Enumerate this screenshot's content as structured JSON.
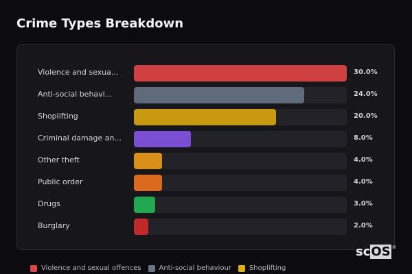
{
  "page": {
    "title": "Crime Types Breakdown"
  },
  "chart_data": {
    "type": "bar",
    "orientation": "horizontal",
    "title": "Crime Types Breakdown",
    "xlabel": "",
    "ylabel": "",
    "scale_max": 30.0,
    "categories": [
      "Violence and sexual offences",
      "Anti-social behaviour",
      "Shoplifting",
      "Criminal damage and arson",
      "Other theft",
      "Public order",
      "Drugs",
      "Burglary"
    ],
    "display_labels": [
      "Violence and sexua...",
      "Anti-social behavi...",
      "Shoplifting",
      "Criminal damage an...",
      "Other theft",
      "Public order",
      "Drugs",
      "Burglary"
    ],
    "values": [
      30.0,
      24.0,
      20.0,
      8.0,
      4.0,
      4.0,
      3.0,
      2.0
    ],
    "value_labels": [
      "30.0%",
      "24.0%",
      "20.0%",
      "8.0%",
      "4.0%",
      "4.0%",
      "3.0%",
      "2.0%"
    ],
    "colors": [
      "#d04040",
      "#5f6b7a",
      "#c9990f",
      "#7b4fd4",
      "#d9901a",
      "#dc6a1e",
      "#22a851",
      "#c0282a"
    ],
    "legend": [
      {
        "label": "Violence and sexual offences",
        "color": "#e0444a"
      },
      {
        "label": "Anti-social behaviour",
        "color": "#6b7587"
      },
      {
        "label": "Shoplifting",
        "color": "#e0b010"
      }
    ],
    "grid": false,
    "legend_position": "bottom"
  },
  "rows": [
    {
      "label": "Violence and sexua...",
      "pct": "30.0%"
    },
    {
      "label": "Anti-social behavi...",
      "pct": "24.0%"
    },
    {
      "label": "Shoplifting",
      "pct": "20.0%"
    },
    {
      "label": "Criminal damage an...",
      "pct": "8.0%"
    },
    {
      "label": "Other theft",
      "pct": "4.0%"
    },
    {
      "label": "Public order",
      "pct": "4.0%"
    },
    {
      "label": "Drugs",
      "pct": "3.0%"
    },
    {
      "label": "Burglary",
      "pct": "2.0%"
    }
  ],
  "legend": [
    {
      "label": "Violence and sexual offences"
    },
    {
      "label": "Anti-social behaviour"
    },
    {
      "label": "Shoplifting"
    }
  ],
  "logo": {
    "left": "sc",
    "right": "OS",
    "mark": "®"
  }
}
